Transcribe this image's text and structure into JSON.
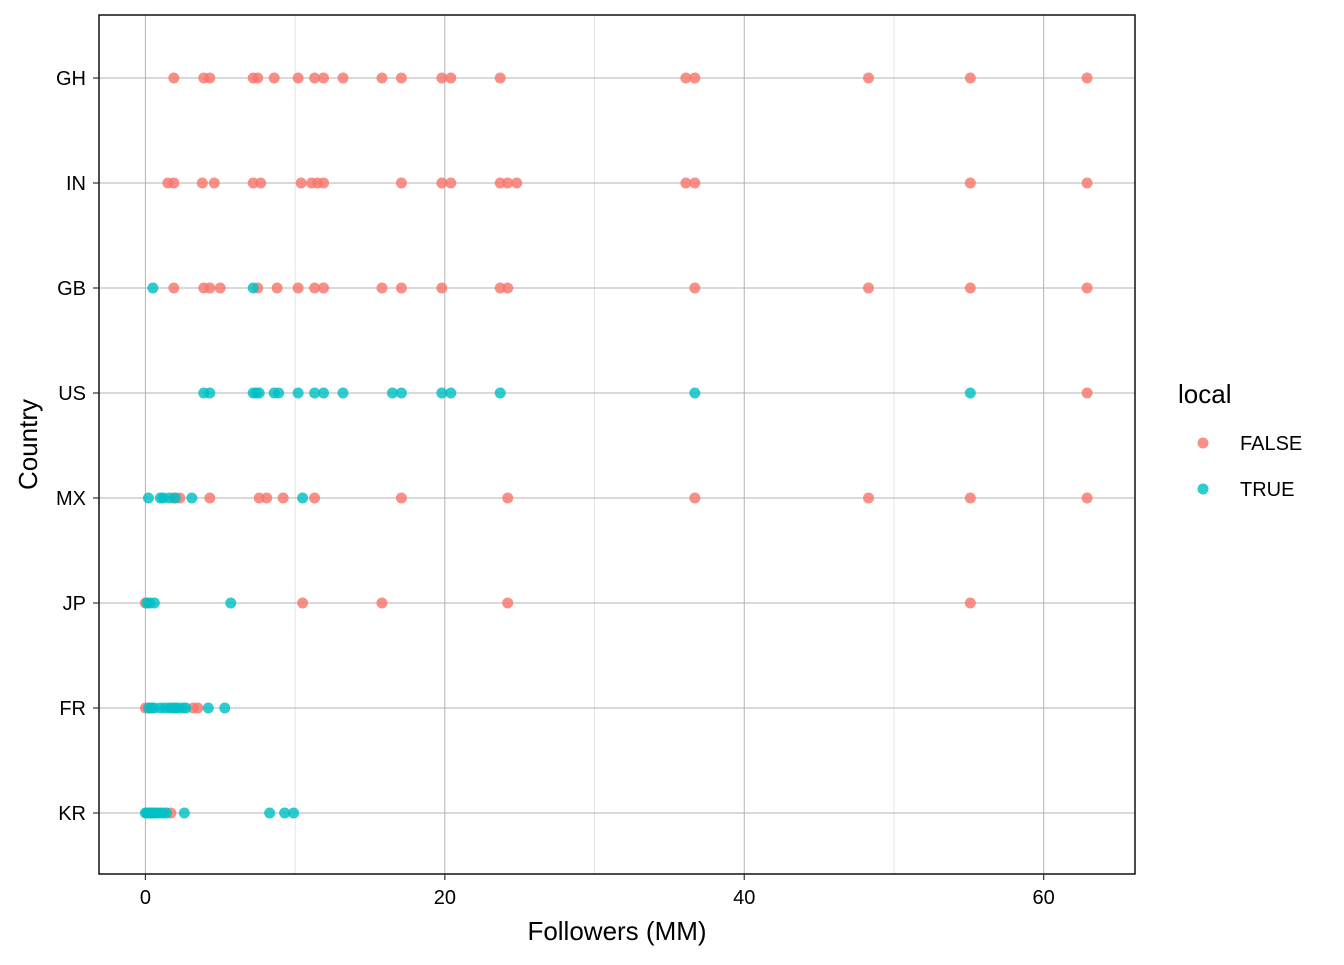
{
  "chart_data": {
    "type": "scatter",
    "xlabel": "Followers (MM)",
    "ylabel": "Country",
    "xlim": [
      -3.1,
      66.1
    ],
    "x_ticks": [
      0,
      20,
      40,
      60
    ],
    "x_minor_ticks": [
      10,
      30,
      50
    ],
    "categories": [
      "KR",
      "FR",
      "JP",
      "MX",
      "US",
      "GB",
      "IN",
      "GH"
    ],
    "grid": true,
    "legend": {
      "title": "local",
      "placement": "right",
      "entries": [
        {
          "label": "FALSE",
          "color": "#F8766D"
        },
        {
          "label": "TRUE",
          "color": "#00BFC4"
        }
      ]
    },
    "series": [
      {
        "name": "FALSE",
        "color": "#F8766D",
        "points": [
          {
            "country": "GH",
            "x": [
              1.9,
              3.9,
              4.3,
              7.2,
              7.5,
              8.6,
              10.2,
              11.3,
              11.9,
              13.2,
              15.8,
              17.1,
              19.8,
              20.4,
              23.7,
              36.1,
              36.7,
              48.3,
              55.1,
              62.9
            ]
          },
          {
            "country": "IN",
            "x": [
              1.5,
              1.9,
              3.8,
              4.6,
              7.2,
              7.7,
              10.4,
              11.1,
              11.5,
              11.9,
              17.1,
              19.8,
              20.4,
              23.7,
              24.2,
              24.8,
              36.1,
              36.7,
              55.1,
              62.9
            ]
          },
          {
            "country": "GB",
            "x": [
              1.9,
              3.9,
              4.3,
              5.0,
              7.5,
              8.8,
              10.2,
              11.3,
              11.9,
              15.8,
              17.1,
              19.8,
              23.7,
              24.2,
              36.7,
              48.3,
              55.1,
              62.9
            ]
          },
          {
            "country": "US",
            "x": [
              62.9
            ]
          },
          {
            "country": "MX",
            "x": [
              1.9,
              2.3,
              4.3,
              7.6,
              8.1,
              9.2,
              11.3,
              17.1,
              24.2,
              36.7,
              48.3,
              55.1,
              62.9
            ]
          },
          {
            "country": "JP",
            "x": [
              0.0,
              10.5,
              15.8,
              24.2,
              55.1
            ]
          },
          {
            "country": "FR",
            "x": [
              0.0,
              0.3,
              3.2,
              3.5
            ]
          },
          {
            "country": "KR",
            "x": [
              1.7
            ]
          }
        ]
      },
      {
        "name": "TRUE",
        "color": "#00BFC4",
        "points": [
          {
            "country": "GB",
            "x": [
              0.5,
              7.2
            ]
          },
          {
            "country": "US",
            "x": [
              3.9,
              4.3,
              7.2,
              7.4,
              7.6,
              8.6,
              8.9,
              10.2,
              11.3,
              11.9,
              13.2,
              16.5,
              17.1,
              19.8,
              20.4,
              23.7,
              36.7,
              55.1
            ]
          },
          {
            "country": "MX",
            "x": [
              0.2,
              1.0,
              1.2,
              1.6,
              2.0,
              3.1,
              10.5
            ]
          },
          {
            "country": "JP",
            "x": [
              0.1,
              0.3,
              0.6,
              5.7
            ]
          },
          {
            "country": "FR",
            "x": [
              0.2,
              0.4,
              0.6,
              1.0,
              1.3,
              1.6,
              1.8,
              2.0,
              2.2,
              2.5,
              2.7,
              4.2,
              5.3
            ]
          },
          {
            "country": "KR",
            "x": [
              0.0,
              0.1,
              0.2,
              0.3,
              0.4,
              0.5,
              0.6,
              0.8,
              1.0,
              1.2,
              1.4,
              2.6,
              8.3,
              9.3,
              9.9
            ]
          }
        ]
      }
    ]
  }
}
